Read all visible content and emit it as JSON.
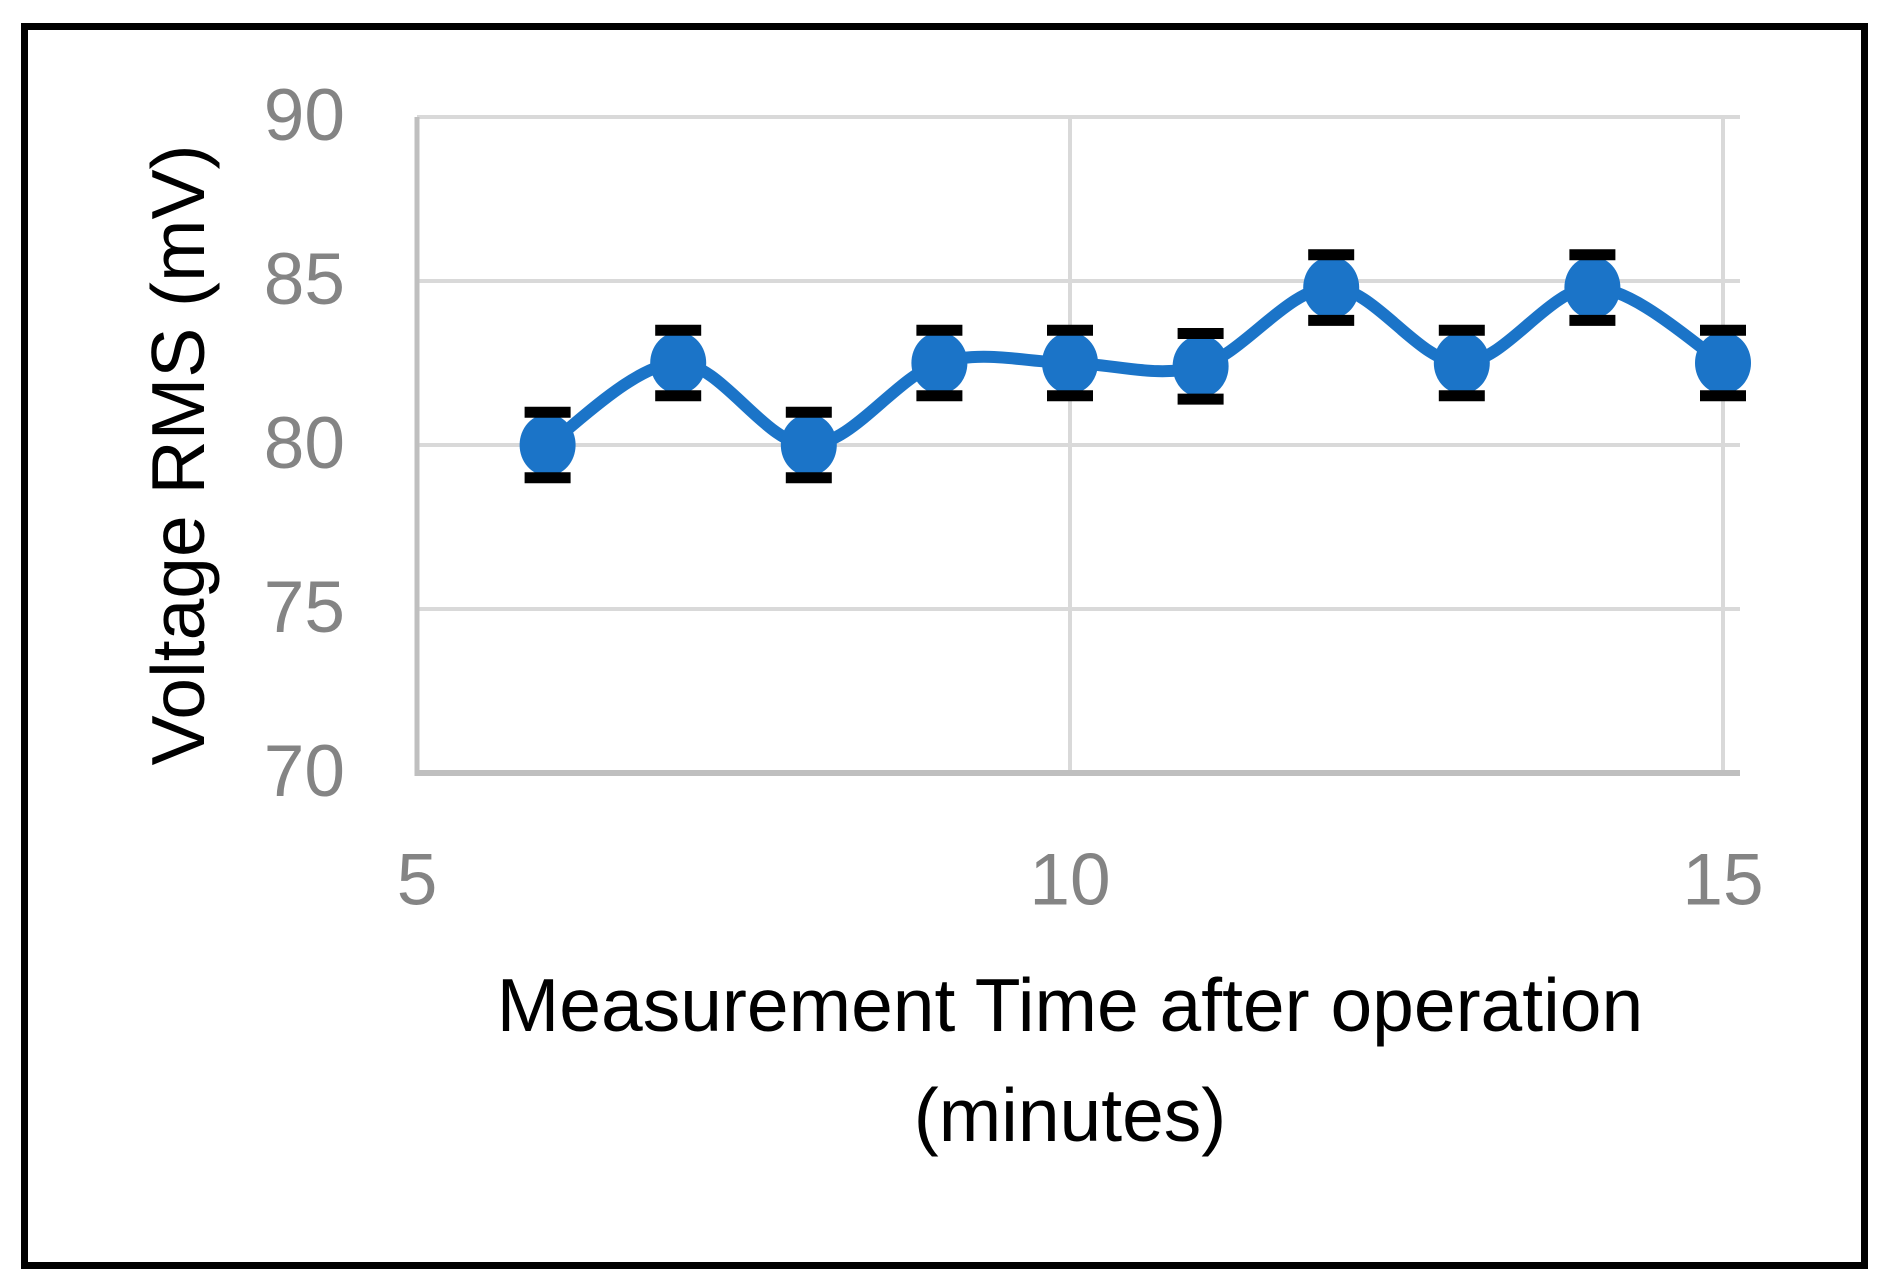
{
  "figure": {
    "background_color": "#ffffff",
    "border_color": "#000000"
  },
  "chart_data": {
    "type": "line",
    "title": "",
    "xlabel_line1": "Measurement Time after operation",
    "xlabel_line2": "(minutes)",
    "ylabel": "Voltage RMS (mV)",
    "x": [
      6,
      7,
      8,
      9,
      10,
      11,
      12,
      13,
      14,
      15
    ],
    "series": [
      {
        "name": "Voltage RMS",
        "values": [
          80.0,
          82.5,
          80.0,
          82.5,
          82.5,
          82.4,
          84.8,
          82.5,
          84.8,
          82.5
        ],
        "error_plus": [
          1.0,
          1.0,
          1.0,
          1.0,
          1.0,
          1.0,
          1.0,
          1.0,
          1.0,
          1.0
        ],
        "error_minus": [
          1.0,
          1.0,
          1.0,
          1.0,
          1.0,
          1.0,
          1.0,
          1.0,
          1.0,
          1.0
        ]
      }
    ],
    "xlim": [
      5,
      15
    ],
    "ylim": [
      70,
      90
    ],
    "x_ticks": [
      5,
      10,
      15
    ],
    "y_ticks": [
      70,
      75,
      80,
      85,
      90
    ],
    "grid": true,
    "smooth_line": true,
    "legend_position": "none",
    "marker": "circle",
    "colors": {
      "line": "#1B74C8",
      "marker": "#1B74C8",
      "error_bar": "#000000",
      "gridline": "#D9D9D9",
      "axis_line": "#BFBFBF",
      "tick_label": "#848484",
      "axis_title": "#000000"
    }
  }
}
